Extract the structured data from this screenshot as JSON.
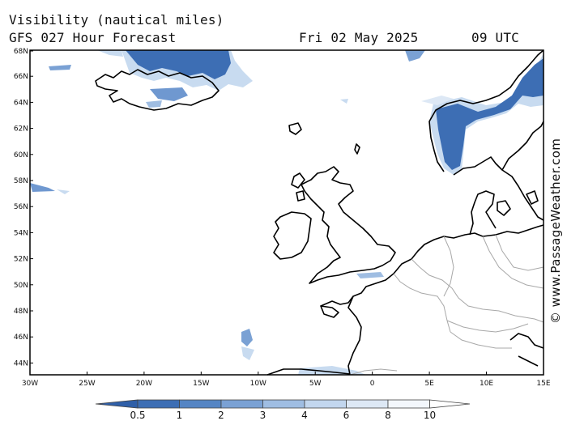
{
  "title": {
    "line1": "Visibility (nautical miles)",
    "line2": "GFS 027 Hour Forecast",
    "date": "Fri 02 May 2025",
    "time": "09 UTC"
  },
  "credit": "© www.PassageWeather.com",
  "map": {
    "lat_labels": [
      "68N",
      "66N",
      "64N",
      "62N",
      "60N",
      "58N",
      "56N",
      "54N",
      "52N",
      "50N",
      "48N",
      "46N",
      "44N"
    ],
    "lon_labels": [
      "30W",
      "25W",
      "20W",
      "15W",
      "10W",
      "5W",
      "0",
      "5E",
      "10E",
      "15E"
    ],
    "region": "North-East Atlantic / North Sea / Scandinavia"
  },
  "colorbar": {
    "labels": [
      "0.5",
      "1",
      "2",
      "3",
      "4",
      "6",
      "8",
      "10"
    ],
    "colors": [
      "#3d6eb4",
      "#5585c4",
      "#7aa1d4",
      "#9fbde2",
      "#c2d6ee",
      "#dde8f5",
      "#f3f7fc"
    ],
    "shading_colors": {
      "low": "#3d6eb4",
      "mid": "#86a9d9",
      "high": "#c8dbf0"
    }
  }
}
